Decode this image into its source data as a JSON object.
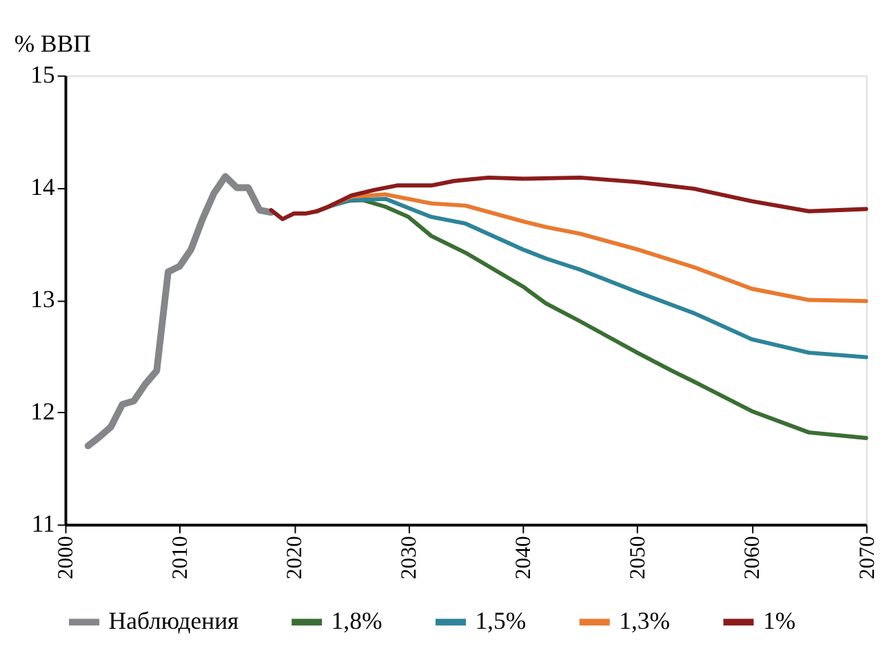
{
  "chart_data": {
    "type": "line",
    "ylabel": "% ВВП",
    "xlim": [
      2000,
      2070
    ],
    "xticks": [
      2000,
      2010,
      2020,
      2030,
      2040,
      2050,
      2060,
      2070
    ],
    "ylim": [
      11,
      15
    ],
    "yticks": [
      11,
      12,
      13,
      14,
      15
    ],
    "grid": false,
    "legend": "bottom",
    "marker": "none",
    "line_style": "solid",
    "series": [
      {
        "name": "Наблюдения",
        "color": "#848689",
        "x": [
          2002,
          2003,
          2004,
          2005,
          2006,
          2007,
          2008,
          2009,
          2010,
          2011,
          2012,
          2013,
          2014,
          2015,
          2016,
          2017,
          2018
        ],
        "values": [
          11.7,
          11.78,
          11.87,
          12.07,
          12.1,
          12.25,
          12.37,
          13.25,
          13.3,
          13.45,
          13.72,
          13.95,
          14.1,
          14.0,
          14.0,
          13.8,
          13.78
        ]
      },
      {
        "name": "1,8%",
        "color": "#3b6e34",
        "x": [
          2022,
          2023,
          2024,
          2026,
          2028,
          2030,
          2032,
          2035,
          2040,
          2042,
          2045,
          2050,
          2053,
          2055,
          2060,
          2065,
          2070
        ],
        "values": [
          13.79,
          13.83,
          13.88,
          13.89,
          13.83,
          13.74,
          13.57,
          13.42,
          13.12,
          12.97,
          12.81,
          12.53,
          12.37,
          12.27,
          12.01,
          11.82,
          11.77
        ]
      },
      {
        "name": "1,5%",
        "color": "#2e8499",
        "x": [
          2022,
          2023,
          2025,
          2028,
          2030,
          2032,
          2035,
          2040,
          2042,
          2045,
          2050,
          2055,
          2060,
          2065,
          2070
        ],
        "values": [
          13.79,
          13.83,
          13.89,
          13.9,
          13.82,
          13.74,
          13.68,
          13.45,
          13.37,
          13.27,
          13.07,
          12.88,
          12.65,
          12.53,
          12.49
        ]
      },
      {
        "name": "1,3%",
        "color": "#e87a30",
        "x": [
          2022,
          2023,
          2025,
          2028,
          2032,
          2035,
          2040,
          2042,
          2045,
          2050,
          2055,
          2060,
          2065,
          2070
        ],
        "values": [
          13.79,
          13.83,
          13.92,
          13.94,
          13.86,
          13.84,
          13.7,
          13.65,
          13.59,
          13.45,
          13.29,
          13.1,
          13.0,
          12.99
        ]
      },
      {
        "name": "1%",
        "color": "#8b1c1c",
        "x": [
          2018,
          2019,
          2020,
          2021,
          2022,
          2023,
          2024,
          2025,
          2027,
          2029,
          2032,
          2034,
          2037,
          2040,
          2045,
          2050,
          2055,
          2060,
          2065,
          2070
        ],
        "values": [
          13.8,
          13.72,
          13.77,
          13.77,
          13.79,
          13.83,
          13.88,
          13.93,
          13.98,
          14.02,
          14.02,
          14.06,
          14.09,
          14.08,
          14.09,
          14.05,
          13.99,
          13.88,
          13.79,
          13.81
        ]
      }
    ]
  }
}
